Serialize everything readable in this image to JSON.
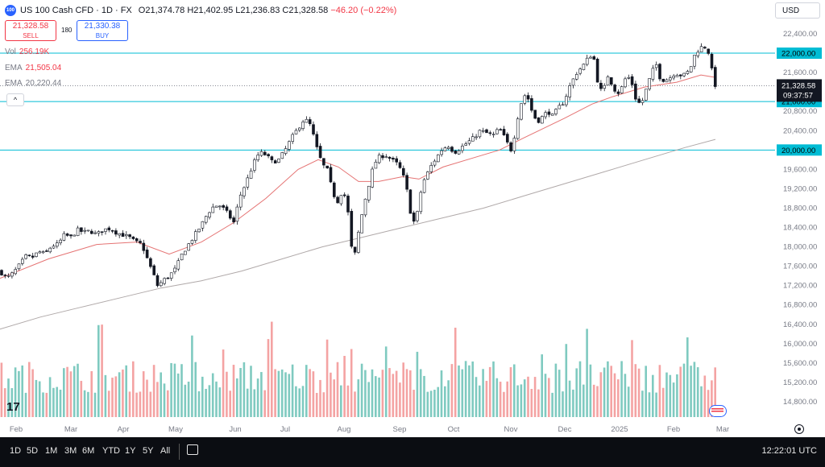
{
  "header": {
    "symbol": "US 100 Cash CFD · 1D · FX",
    "logo_text": "100",
    "ohlc": {
      "o": "21,374.78",
      "h": "21,402.95",
      "l": "21,236.83",
      "c": "21,328.58",
      "chg": "−46.20 (−0.22%)"
    }
  },
  "trade": {
    "sell_price": "21,328.58",
    "sell_label": "SELL",
    "buy_price": "21,330.38",
    "buy_label": "BUY",
    "spread": "180"
  },
  "indicators": {
    "vol_label": "Vol",
    "vol_value": "256.19K",
    "ema1_label": "EMA",
    "ema1_value": "21,505.04",
    "ema2_label": "EMA",
    "ema2_value": "20,220.44"
  },
  "currency": "USD",
  "colors": {
    "up": "#089981",
    "down": "#f23645",
    "ema_fast": "#e57373",
    "ema_slow": "#b0a9a9",
    "hline": "#00bcd4",
    "vol_up": "#7fcac0",
    "vol_down": "#f4a3a3",
    "accent": "#2962ff"
  },
  "chart_data": {
    "type": "candlestick",
    "title": "US 100 Cash CFD",
    "timeframe": "1D",
    "y_range": [
      14500,
      22500
    ],
    "y_ticks": [
      "22,400.00",
      "22,000.00",
      "21,600.00",
      "21,200.00",
      "20,800.00",
      "20,400.00",
      "20,000.00",
      "19,600.00",
      "19,200.00",
      "18,800.00",
      "18,400.00",
      "18,000.00",
      "17,600.00",
      "17,200.00",
      "16,800.00",
      "16,400.00",
      "16,000.00",
      "15,600.00",
      "15,200.00",
      "14,800.00"
    ],
    "x_labels": [
      "Feb",
      "Mar",
      "Apr",
      "May",
      "Jun",
      "Jul",
      "Aug",
      "Sep",
      "Oct",
      "Nov",
      "Dec",
      "2025",
      "Feb",
      "Mar"
    ],
    "horizontal_lines": [
      {
        "value": 22000,
        "label": "22,000.00"
      },
      {
        "value": 21000,
        "label": "21,000.00"
      },
      {
        "value": 20000,
        "label": "20,000.00"
      }
    ],
    "last_price": {
      "value": 21328.58,
      "label": "21,328.58",
      "countdown": "09:37:57"
    },
    "close_path": [
      [
        0,
        17500
      ],
      [
        8,
        17350
      ],
      [
        16,
        17450
      ],
      [
        24,
        17620
      ],
      [
        32,
        17800
      ],
      [
        40,
        17780
      ],
      [
        48,
        17900
      ],
      [
        56,
        17850
      ],
      [
        64,
        18020
      ],
      [
        72,
        18050
      ],
      [
        80,
        18250
      ],
      [
        88,
        18200
      ],
      [
        96,
        18350
      ],
      [
        104,
        18300
      ],
      [
        112,
        18330
      ],
      [
        120,
        18250
      ],
      [
        128,
        18350
      ],
      [
        136,
        18380
      ],
      [
        144,
        18300
      ],
      [
        152,
        18250
      ],
      [
        160,
        18200
      ],
      [
        168,
        18100
      ],
      [
        176,
        18050
      ],
      [
        184,
        17700
      ],
      [
        190,
        17450
      ],
      [
        196,
        17180
      ],
      [
        202,
        17300
      ],
      [
        210,
        17400
      ],
      [
        218,
        17550
      ],
      [
        226,
        17850
      ],
      [
        234,
        18050
      ],
      [
        242,
        18250
      ],
      [
        250,
        18450
      ],
      [
        258,
        18700
      ],
      [
        266,
        18850
      ],
      [
        274,
        18850
      ],
      [
        282,
        18700
      ],
      [
        290,
        18500
      ],
      [
        298,
        19050
      ],
      [
        306,
        19350
      ],
      [
        314,
        19700
      ],
      [
        322,
        19950
      ],
      [
        330,
        19900
      ],
      [
        338,
        19750
      ],
      [
        346,
        19800
      ],
      [
        354,
        20000
      ],
      [
        362,
        20250
      ],
      [
        370,
        20450
      ],
      [
        378,
        20650
      ],
      [
        386,
        20500
      ],
      [
        392,
        20100
      ],
      [
        400,
        19700
      ],
      [
        406,
        19600
      ],
      [
        412,
        19200
      ],
      [
        418,
        18900
      ],
      [
        426,
        19200
      ],
      [
        432,
        18700
      ],
      [
        436,
        18000
      ],
      [
        440,
        17800
      ],
      [
        446,
        18400
      ],
      [
        452,
        18900
      ],
      [
        458,
        19300
      ],
      [
        464,
        19700
      ],
      [
        470,
        19850
      ],
      [
        478,
        19900
      ],
      [
        486,
        19800
      ],
      [
        494,
        19700
      ],
      [
        500,
        19500
      ],
      [
        506,
        19100
      ],
      [
        512,
        18450
      ],
      [
        518,
        18700
      ],
      [
        524,
        19300
      ],
      [
        530,
        19500
      ],
      [
        536,
        19700
      ],
      [
        542,
        19850
      ],
      [
        548,
        20000
      ],
      [
        556,
        20100
      ],
      [
        564,
        19950
      ],
      [
        572,
        20050
      ],
      [
        580,
        20150
      ],
      [
        588,
        20250
      ],
      [
        596,
        20400
      ],
      [
        604,
        20350
      ],
      [
        612,
        20300
      ],
      [
        620,
        20450
      ],
      [
        628,
        20200
      ],
      [
        634,
        20000
      ],
      [
        638,
        20250
      ],
      [
        644,
        20800
      ],
      [
        650,
        21150
      ],
      [
        656,
        21050
      ],
      [
        662,
        20700
      ],
      [
        668,
        20600
      ],
      [
        674,
        20700
      ],
      [
        680,
        20800
      ],
      [
        686,
        20700
      ],
      [
        692,
        20850
      ],
      [
        700,
        21000
      ],
      [
        708,
        21350
      ],
      [
        716,
        21600
      ],
      [
        724,
        21750
      ],
      [
        730,
        21900
      ],
      [
        736,
        22000
      ],
      [
        742,
        21400
      ],
      [
        748,
        21150
      ],
      [
        754,
        21550
      ],
      [
        760,
        21350
      ],
      [
        766,
        21150
      ],
      [
        772,
        21300
      ],
      [
        778,
        21550
      ],
      [
        784,
        21400
      ],
      [
        790,
        21000
      ],
      [
        796,
        20950
      ],
      [
        802,
        21250
      ],
      [
        808,
        21550
      ],
      [
        814,
        21800
      ],
      [
        820,
        21450
      ],
      [
        826,
        21450
      ],
      [
        832,
        21500
      ],
      [
        838,
        21600
      ],
      [
        844,
        21550
      ],
      [
        850,
        21550
      ],
      [
        856,
        21650
      ],
      [
        862,
        21950
      ],
      [
        868,
        22100
      ],
      [
        874,
        22150
      ],
      [
        880,
        22000
      ],
      [
        884,
        21600
      ],
      [
        888,
        21330
      ]
    ],
    "ema_fast": [
      [
        0,
        17350
      ],
      [
        60,
        17750
      ],
      [
        120,
        18050
      ],
      [
        170,
        18100
      ],
      [
        210,
        17850
      ],
      [
        250,
        18100
      ],
      [
        290,
        18500
      ],
      [
        330,
        19000
      ],
      [
        370,
        19600
      ],
      [
        395,
        19800
      ],
      [
        420,
        19650
      ],
      [
        445,
        19350
      ],
      [
        470,
        19350
      ],
      [
        500,
        19450
      ],
      [
        520,
        19400
      ],
      [
        550,
        19650
      ],
      [
        590,
        19850
      ],
      [
        620,
        20000
      ],
      [
        650,
        20250
      ],
      [
        700,
        20650
      ],
      [
        735,
        20950
      ],
      [
        760,
        21100
      ],
      [
        800,
        21300
      ],
      [
        840,
        21400
      ],
      [
        870,
        21550
      ],
      [
        888,
        21500
      ]
    ],
    "ema_slow": [
      [
        0,
        16300
      ],
      [
        50,
        16550
      ],
      [
        100,
        16750
      ],
      [
        150,
        16950
      ],
      [
        200,
        17150
      ],
      [
        250,
        17300
      ],
      [
        300,
        17500
      ],
      [
        350,
        17750
      ],
      [
        400,
        18000
      ],
      [
        450,
        18200
      ],
      [
        500,
        18400
      ],
      [
        550,
        18600
      ],
      [
        600,
        18800
      ],
      [
        650,
        19050
      ],
      [
        700,
        19300
      ],
      [
        750,
        19550
      ],
      [
        800,
        19800
      ],
      [
        850,
        20050
      ],
      [
        888,
        20220
      ]
    ],
    "volume": {
      "max_label": "Vol 256.19K"
    }
  },
  "bottom": {
    "timeframes": [
      "1D",
      "5D",
      "1M",
      "3M",
      "6M",
      "YTD",
      "1Y",
      "5Y",
      "All"
    ],
    "clock": "12:22:01 UTC"
  }
}
